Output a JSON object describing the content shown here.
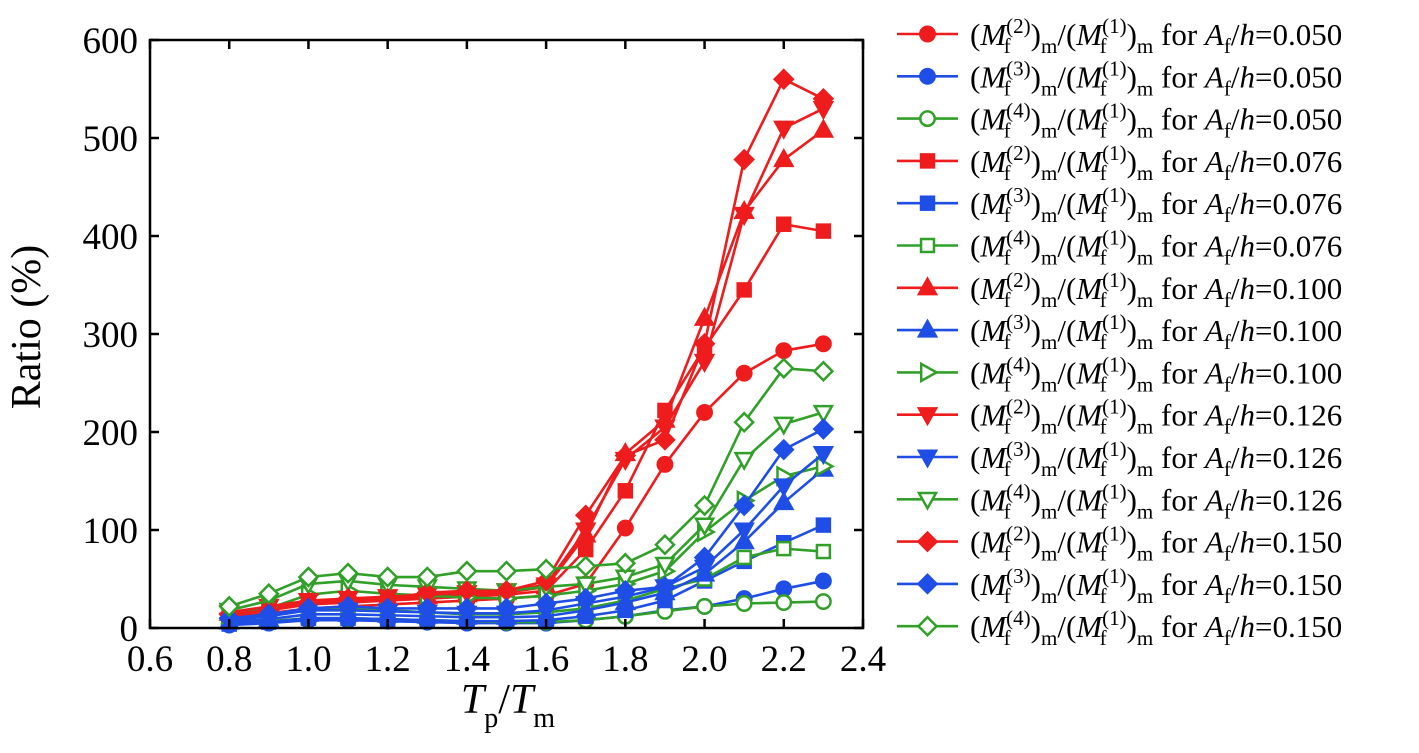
{
  "chart_data": {
    "type": "line",
    "xlabel": {
      "base": "T",
      "base_sub": "p",
      "slash": "/",
      "base2": "T",
      "base2_sub": "m"
    },
    "ylabel": "Ratio (%)",
    "xlim": [
      0.6,
      2.4
    ],
    "ylim": [
      0,
      600
    ],
    "xticks": [
      "0.6",
      "0.8",
      "1.0",
      "1.2",
      "1.4",
      "1.6",
      "1.8",
      "2.0",
      "2.2",
      "2.4"
    ],
    "yticks": [
      "0",
      "100",
      "200",
      "300",
      "400",
      "500",
      "600"
    ],
    "grid": false,
    "legend_position": "right",
    "x": [
      0.8,
      0.9,
      1.0,
      1.1,
      1.2,
      1.3,
      1.4,
      1.5,
      1.6,
      1.7,
      1.8,
      1.9,
      2.0,
      2.1,
      2.2,
      2.3
    ],
    "series": [
      {
        "name": "(M_f^(2))_m/(M_f^(1))_m for A_f/h=0.050",
        "mode": "2",
        "ah": "0.050",
        "color": "#ee1c1c",
        "marker": "circle",
        "filled": true,
        "values": [
          12,
          15,
          20,
          22,
          24,
          26,
          28,
          30,
          33,
          45,
          102,
          167,
          220,
          260,
          283,
          290
        ]
      },
      {
        "name": "(M_f^(3))_m/(M_f^(1))_m for A_f/h=0.050",
        "mode": "3",
        "ah": "0.050",
        "color": "#1f4ee6",
        "marker": "circle",
        "filled": true,
        "values": [
          3,
          5,
          8,
          8,
          7,
          6,
          5,
          5,
          5,
          8,
          12,
          18,
          22,
          30,
          40,
          48
        ]
      },
      {
        "name": "(M_f^(4))_m/(M_f^(1))_m for A_f/h=0.050",
        "mode": "4",
        "ah": "0.050",
        "color": "#31a028",
        "marker": "circle",
        "filled": false,
        "values": [
          5,
          7,
          10,
          10,
          9,
          8,
          7,
          6,
          6,
          8,
          12,
          17,
          22,
          25,
          26,
          27
        ]
      },
      {
        "name": "(M_f^(2))_m/(M_f^(1))_m for A_f/h=0.076",
        "mode": "2",
        "ah": "0.076",
        "color": "#ee1c1c",
        "marker": "square",
        "filled": true,
        "values": [
          14,
          18,
          24,
          26,
          28,
          30,
          32,
          34,
          38,
          80,
          140,
          222,
          286,
          345,
          412,
          405
        ]
      },
      {
        "name": "(M_f^(3))_m/(M_f^(1))_m for A_f/h=0.076",
        "mode": "3",
        "ah": "0.076",
        "color": "#1f4ee6",
        "marker": "square",
        "filled": true,
        "values": [
          4,
          6,
          10,
          10,
          9,
          8,
          7,
          7,
          8,
          12,
          18,
          28,
          48,
          68,
          87,
          105
        ]
      },
      {
        "name": "(M_f^(4))_m/(M_f^(1))_m for A_f/h=0.076",
        "mode": "4",
        "ah": "0.076",
        "color": "#31a028",
        "marker": "square",
        "filled": false,
        "values": [
          8,
          12,
          20,
          20,
          18,
          16,
          14,
          14,
          16,
          20,
          28,
          40,
          50,
          72,
          81,
          78
        ]
      },
      {
        "name": "(M_f^(2))_m/(M_f^(1))_m for A_f/h=0.100",
        "mode": "2",
        "ah": "0.100",
        "color": "#ee1c1c",
        "marker": "triangle-up",
        "filled": true,
        "values": [
          15,
          20,
          26,
          28,
          30,
          32,
          34,
          36,
          42,
          95,
          178,
          212,
          316,
          425,
          478,
          508
        ]
      },
      {
        "name": "(M_f^(3))_m/(M_f^(1))_m for A_f/h=0.100",
        "mode": "3",
        "ah": "0.100",
        "color": "#1f4ee6",
        "marker": "triangle-up",
        "filled": true,
        "values": [
          6,
          9,
          14,
          14,
          13,
          12,
          11,
          11,
          12,
          18,
          26,
          36,
          55,
          88,
          128,
          162
        ]
      },
      {
        "name": "(M_f^(4))_m/(M_f^(1))_m for A_f/h=0.100",
        "mode": "4",
        "ah": "0.100",
        "color": "#31a028",
        "marker": "tri-right",
        "filled": false,
        "values": [
          14,
          20,
          34,
          38,
          35,
          33,
          31,
          30,
          33,
          38,
          45,
          58,
          98,
          130,
          155,
          165
        ]
      },
      {
        "name": "(M_f^(2))_m/(M_f^(1))_m for A_f/h=0.126",
        "mode": "2",
        "ah": "0.126",
        "color": "#ee1c1c",
        "marker": "triangle-down",
        "filled": true,
        "values": [
          16,
          22,
          28,
          30,
          32,
          34,
          36,
          38,
          44,
          100,
          172,
          205,
          272,
          422,
          510,
          530
        ]
      },
      {
        "name": "(M_f^(3))_m/(M_f^(1))_m for A_f/h=0.126",
        "mode": "3",
        "ah": "0.126",
        "color": "#1f4ee6",
        "marker": "triangle-down",
        "filled": true,
        "values": [
          8,
          12,
          18,
          18,
          17,
          16,
          15,
          15,
          18,
          25,
          32,
          42,
          62,
          100,
          145,
          178
        ]
      },
      {
        "name": "(M_f^(4))_m/(M_f^(1))_m for A_f/h=0.126",
        "mode": "4",
        "ah": "0.126",
        "color": "#31a028",
        "marker": "triangle-down",
        "filled": false,
        "values": [
          18,
          28,
          45,
          48,
          44,
          42,
          40,
          38,
          42,
          45,
          52,
          65,
          105,
          172,
          208,
          220
        ]
      },
      {
        "name": "(M_f^(2))_m/(M_f^(1))_m for A_f/h=0.150",
        "mode": "2",
        "ah": "0.150",
        "color": "#ee1c1c",
        "marker": "diamond",
        "filled": true,
        "values": [
          14,
          18,
          26,
          30,
          30,
          36,
          38,
          38,
          48,
          115,
          176,
          192,
          290,
          478,
          560,
          540
        ]
      },
      {
        "name": "(M_f^(3))_m/(M_f^(1))_m for A_f/h=0.150",
        "mode": "3",
        "ah": "0.150",
        "color": "#1f4ee6",
        "marker": "diamond",
        "filled": true,
        "values": [
          10,
          14,
          20,
          22,
          20,
          20,
          20,
          20,
          25,
          30,
          38,
          42,
          72,
          125,
          182,
          203
        ]
      },
      {
        "name": "(M_f^(4))_m/(M_f^(1))_m for A_f/h=0.150",
        "mode": "4",
        "ah": "0.150",
        "color": "#31a028",
        "marker": "diamond",
        "filled": false,
        "values": [
          22,
          35,
          52,
          56,
          52,
          52,
          58,
          58,
          60,
          63,
          66,
          85,
          125,
          210,
          265,
          262
        ]
      }
    ]
  }
}
